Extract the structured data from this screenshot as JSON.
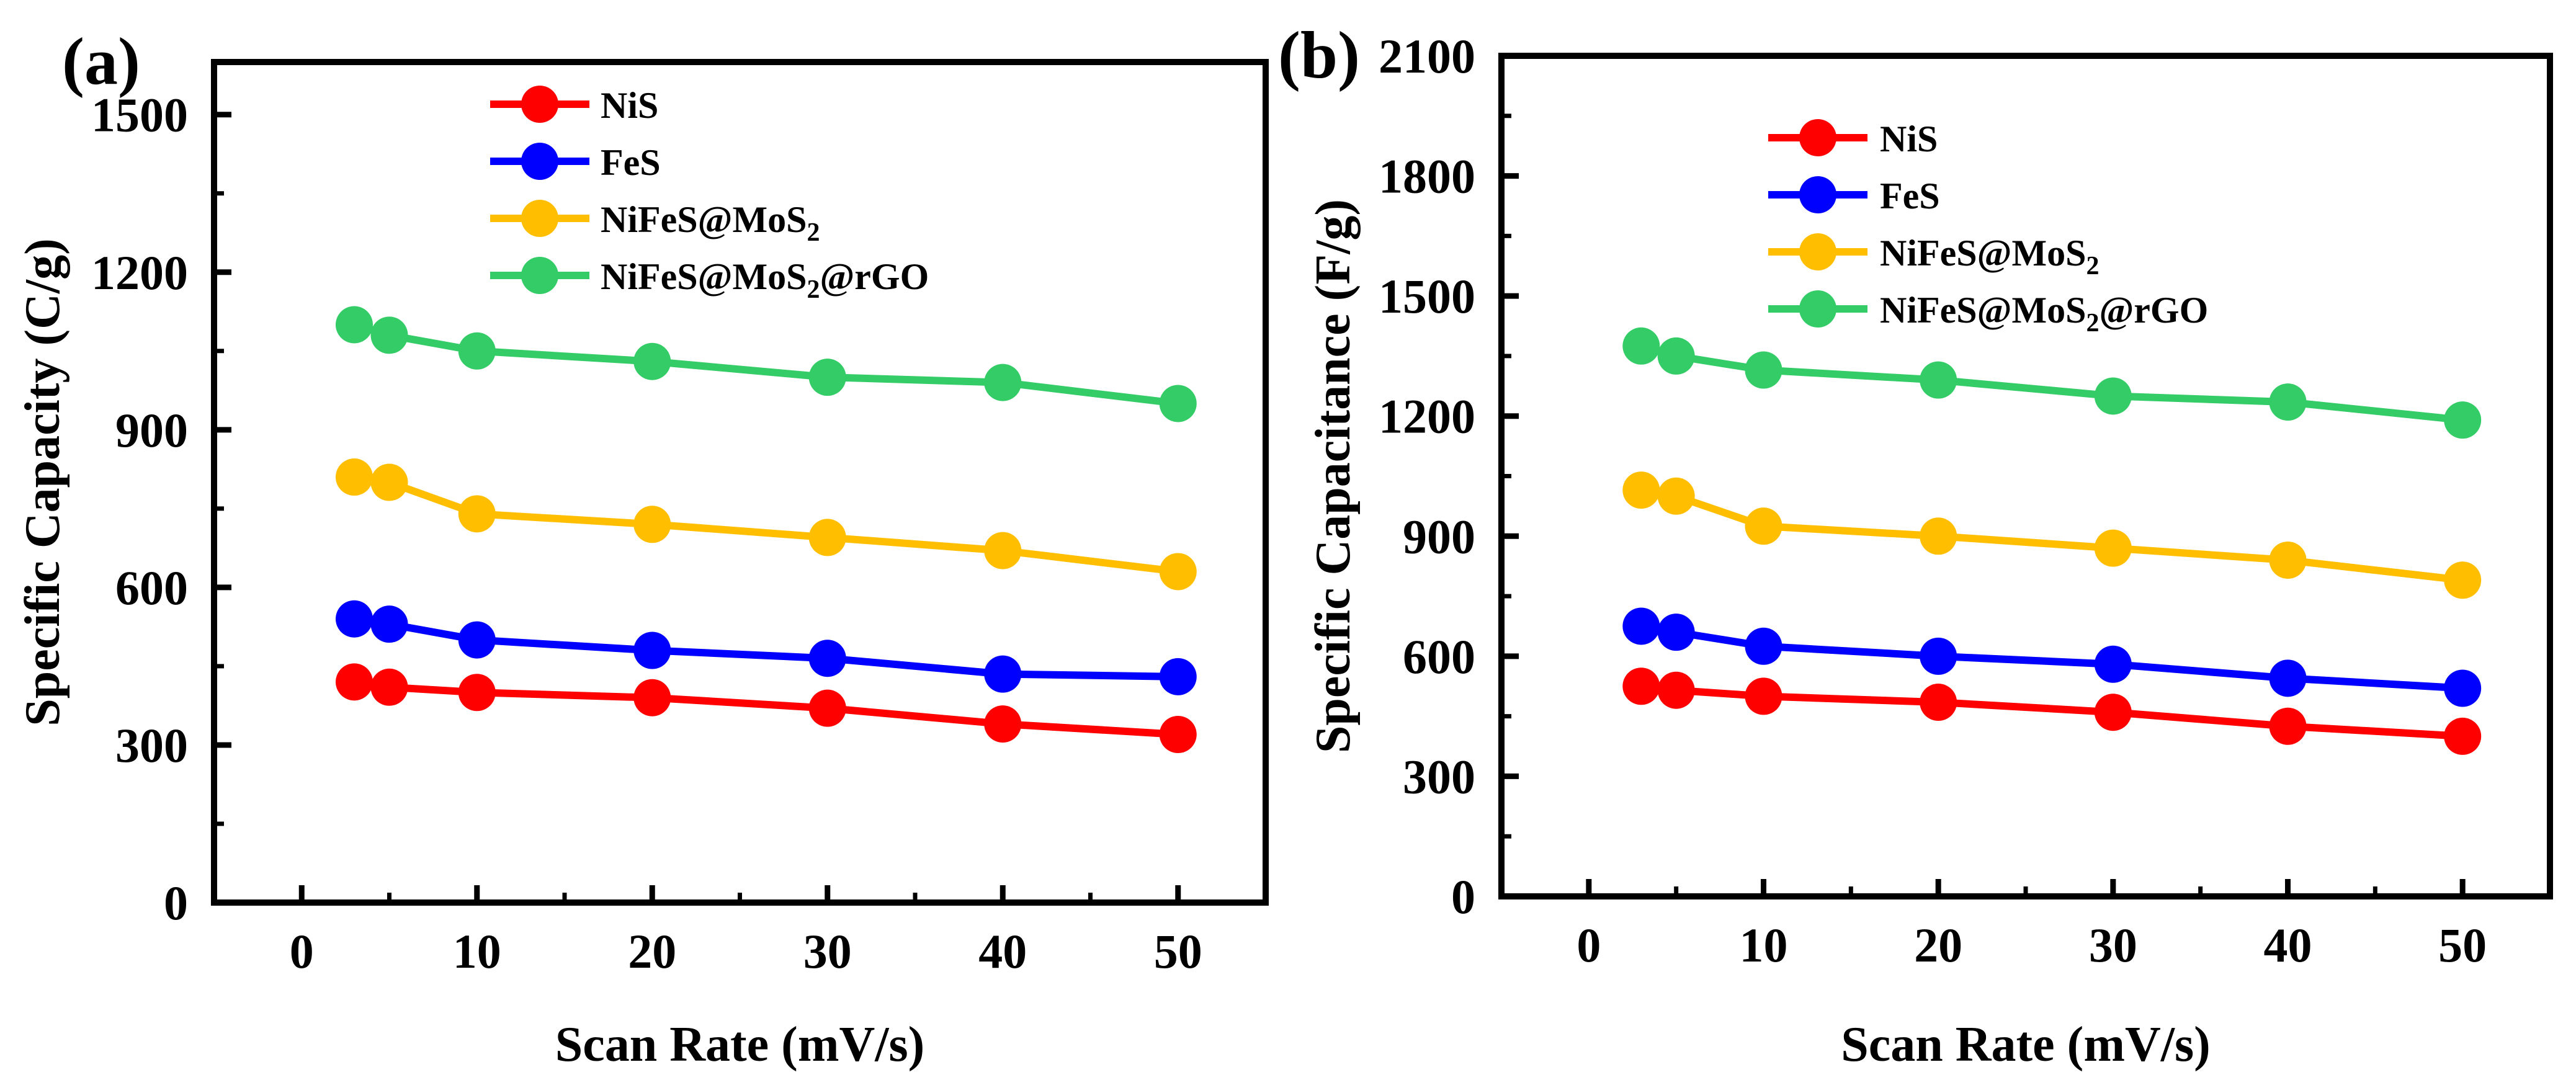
{
  "chart_data": [
    {
      "type": "line",
      "panel_label": "(a)",
      "title": "",
      "xlabel": "Scan Rate (mV/s)",
      "ylabel": "Specific Capacity (C/g)",
      "xlim": [
        -5,
        55
      ],
      "ylim": [
        0,
        1600
      ],
      "xticks": [
        0,
        10,
        20,
        30,
        40,
        50
      ],
      "yticks": [
        0,
        300,
        600,
        900,
        1200,
        1500
      ],
      "x": [
        3,
        5,
        10,
        20,
        30,
        40,
        50
      ],
      "legend_position": "top-center",
      "series": [
        {
          "name": "NiS",
          "label_base": "NiS",
          "label_sub": "",
          "label_tail": "",
          "color": "#ff0000",
          "values": [
            420,
            410,
            400,
            390,
            370,
            340,
            320
          ]
        },
        {
          "name": "FeS",
          "label_base": "FeS",
          "label_sub": "",
          "label_tail": "",
          "color": "#0000ff",
          "values": [
            540,
            530,
            500,
            480,
            465,
            435,
            430
          ]
        },
        {
          "name": "NiFeS@MoS2",
          "label_base": "NiFeS@MoS",
          "label_sub": "2",
          "label_tail": "",
          "color": "#ffbf00",
          "values": [
            810,
            800,
            740,
            720,
            695,
            670,
            630
          ]
        },
        {
          "name": "NiFeS@MoS2@rGO",
          "label_base": "NiFeS@MoS",
          "label_sub": "2",
          "label_tail": "@rGO",
          "color": "#33cc66",
          "values": [
            1100,
            1080,
            1050,
            1030,
            1000,
            990,
            950
          ]
        }
      ]
    },
    {
      "type": "line",
      "panel_label": "(b)",
      "title": "",
      "xlabel": "Scan Rate (mV/s)",
      "ylabel": "Specific Capacitance (F/g)",
      "xlim": [
        -5,
        55
      ],
      "ylim": [
        0,
        2100
      ],
      "xticks": [
        0,
        10,
        20,
        30,
        40,
        50
      ],
      "yticks": [
        0,
        300,
        600,
        900,
        1200,
        1500,
        1800,
        2100
      ],
      "x": [
        3,
        5,
        10,
        20,
        30,
        40,
        50
      ],
      "legend_position": "top-center",
      "series": [
        {
          "name": "NiS",
          "label_base": "NiS",
          "label_sub": "",
          "label_tail": "",
          "color": "#ff0000",
          "values": [
            525,
            515,
            500,
            485,
            460,
            425,
            400
          ]
        },
        {
          "name": "FeS",
          "label_base": "FeS",
          "label_sub": "",
          "label_tail": "",
          "color": "#0000ff",
          "values": [
            675,
            660,
            625,
            600,
            580,
            545,
            520
          ]
        },
        {
          "name": "NiFeS@MoS2",
          "label_base": "NiFeS@MoS",
          "label_sub": "2",
          "label_tail": "",
          "color": "#ffbf00",
          "values": [
            1015,
            1000,
            925,
            900,
            870,
            840,
            790
          ]
        },
        {
          "name": "NiFeS@MoS2@rGO",
          "label_base": "NiFeS@MoS",
          "label_sub": "2",
          "label_tail": "@rGO",
          "color": "#33cc66",
          "values": [
            1375,
            1350,
            1315,
            1290,
            1250,
            1235,
            1190
          ]
        }
      ]
    }
  ]
}
